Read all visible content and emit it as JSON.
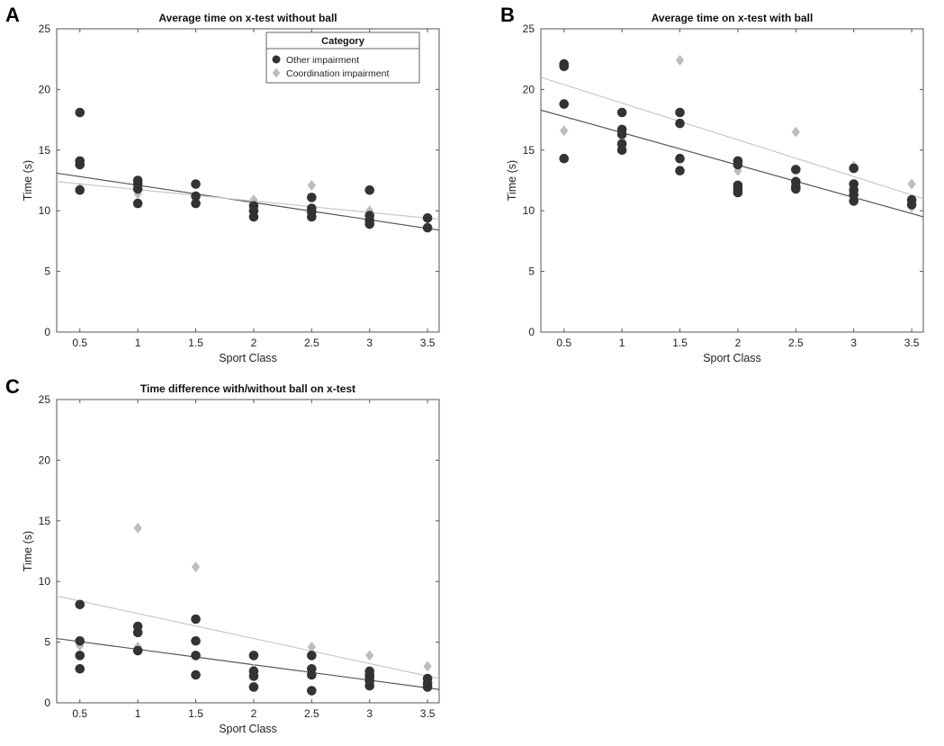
{
  "colors": {
    "other": "#333333",
    "coordination": "#bdbdbd",
    "other_fit": "#555555",
    "coordination_fit": "#c8c8c8"
  },
  "legend": {
    "title": "Category",
    "entries": [
      "Other impairment",
      "Coordination impairment"
    ]
  },
  "chart_data": [
    {
      "type": "scatter",
      "panel": "A",
      "title": "Average time on x-test without ball",
      "xlabel": "Sport Class",
      "ylabel": "Time (s)",
      "xlim": [
        0.3,
        3.6
      ],
      "ylim": [
        0,
        25
      ],
      "xticks": [
        "0.5",
        "1",
        "1.5",
        "2",
        "2.5",
        "3",
        "3.5"
      ],
      "yticks": [
        "0",
        "5",
        "10",
        "15",
        "20",
        "25"
      ],
      "series": [
        {
          "name": "Other impairment",
          "points": [
            [
              0.5,
              18.1
            ],
            [
              0.5,
              14.1
            ],
            [
              0.5,
              13.8
            ],
            [
              0.5,
              11.7
            ],
            [
              1,
              12.5
            ],
            [
              1,
              12.2
            ],
            [
              1,
              11.8
            ],
            [
              1,
              10.6
            ],
            [
              1.5,
              12.2
            ],
            [
              1.5,
              11.2
            ],
            [
              1.5,
              10.6
            ],
            [
              2,
              10.4
            ],
            [
              2,
              10.0
            ],
            [
              2,
              9.5
            ],
            [
              2.5,
              11.1
            ],
            [
              2.5,
              10.2
            ],
            [
              2.5,
              9.9
            ],
            [
              2.5,
              9.5
            ],
            [
              3,
              11.7
            ],
            [
              3,
              9.6
            ],
            [
              3,
              9.2
            ],
            [
              3,
              8.9
            ],
            [
              3.5,
              9.4
            ],
            [
              3.5,
              8.6
            ]
          ]
        },
        {
          "name": "Coordination impairment",
          "points": [
            [
              0.5,
              11.9
            ],
            [
              1,
              11.4
            ],
            [
              1.5,
              11.2
            ],
            [
              2,
              10.9
            ],
            [
              2.5,
              12.1
            ],
            [
              3,
              10.0
            ],
            [
              3.5,
              9.3
            ]
          ]
        }
      ],
      "fits": [
        {
          "name": "Other impairment",
          "from": [
            0.3,
            13.1
          ],
          "to": [
            3.6,
            8.4
          ]
        },
        {
          "name": "Coordination impairment",
          "from": [
            0.3,
            12.4
          ],
          "to": [
            3.6,
            9.3
          ]
        }
      ]
    },
    {
      "type": "scatter",
      "panel": "B",
      "title": "Average time on x-test with ball",
      "xlabel": "Sport Class",
      "ylabel": "Time (s)",
      "xlim": [
        0.3,
        3.6
      ],
      "ylim": [
        0,
        25
      ],
      "xticks": [
        "0.5",
        "1",
        "1.5",
        "2",
        "2.5",
        "3",
        "3.5"
      ],
      "yticks": [
        "0",
        "5",
        "10",
        "15",
        "20",
        "25"
      ],
      "series": [
        {
          "name": "Other impairment",
          "points": [
            [
              0.5,
              22.1
            ],
            [
              0.5,
              21.9
            ],
            [
              0.5,
              18.8
            ],
            [
              0.5,
              14.3
            ],
            [
              1,
              18.1
            ],
            [
              1,
              16.7
            ],
            [
              1,
              16.3
            ],
            [
              1,
              15.5
            ],
            [
              1,
              15.0
            ],
            [
              1.5,
              18.1
            ],
            [
              1.5,
              17.2
            ],
            [
              1.5,
              14.3
            ],
            [
              1.5,
              13.3
            ],
            [
              2,
              14.1
            ],
            [
              2,
              13.8
            ],
            [
              2,
              12.1
            ],
            [
              2,
              11.8
            ],
            [
              2,
              11.5
            ],
            [
              2.5,
              13.4
            ],
            [
              2.5,
              12.4
            ],
            [
              2.5,
              12.0
            ],
            [
              2.5,
              11.8
            ],
            [
              3,
              13.5
            ],
            [
              3,
              12.2
            ],
            [
              3,
              11.7
            ],
            [
              3,
              11.3
            ],
            [
              3,
              10.8
            ],
            [
              3.5,
              10.9
            ],
            [
              3.5,
              10.5
            ]
          ]
        },
        {
          "name": "Coordination impairment",
          "points": [
            [
              0.5,
              16.6
            ],
            [
              1,
              15.8
            ],
            [
              1.5,
              22.4
            ],
            [
              2,
              13.3
            ],
            [
              2.5,
              16.5
            ],
            [
              3,
              13.7
            ],
            [
              3.5,
              12.2
            ],
            [
              3.5,
              10.3
            ]
          ]
        }
      ],
      "fits": [
        {
          "name": "Other impairment",
          "from": [
            0.3,
            18.3
          ],
          "to": [
            3.6,
            9.5
          ]
        },
        {
          "name": "Coordination impairment",
          "from": [
            0.3,
            21.0
          ],
          "to": [
            3.6,
            11.0
          ]
        }
      ]
    },
    {
      "type": "scatter",
      "panel": "C",
      "title": "Time difference with/without ball on x-test",
      "xlabel": "Sport Class",
      "ylabel": "Time (s)",
      "xlim": [
        0.3,
        3.6
      ],
      "ylim": [
        0,
        25
      ],
      "xticks": [
        "0.5",
        "1",
        "1.5",
        "2",
        "2.5",
        "3",
        "3.5"
      ],
      "yticks": [
        "0",
        "5",
        "10",
        "15",
        "20",
        "25"
      ],
      "series": [
        {
          "name": "Other impairment",
          "points": [
            [
              0.5,
              8.1
            ],
            [
              0.5,
              5.1
            ],
            [
              0.5,
              3.9
            ],
            [
              0.5,
              2.8
            ],
            [
              1,
              6.3
            ],
            [
              1,
              5.8
            ],
            [
              1,
              4.3
            ],
            [
              1.5,
              6.9
            ],
            [
              1.5,
              5.1
            ],
            [
              1.5,
              3.9
            ],
            [
              1.5,
              2.3
            ],
            [
              2,
              3.9
            ],
            [
              2,
              2.6
            ],
            [
              2,
              2.2
            ],
            [
              2,
              1.3
            ],
            [
              2.5,
              3.9
            ],
            [
              2.5,
              2.8
            ],
            [
              2.5,
              2.3
            ],
            [
              2.5,
              1.0
            ],
            [
              3,
              2.6
            ],
            [
              3,
              2.3
            ],
            [
              3,
              2.1
            ],
            [
              3,
              1.8
            ],
            [
              3,
              1.4
            ],
            [
              3.5,
              2.0
            ],
            [
              3.5,
              1.6
            ],
            [
              3.5,
              1.3
            ]
          ]
        },
        {
          "name": "Coordination impairment",
          "points": [
            [
              0.5,
              4.7
            ],
            [
              1,
              14.4
            ],
            [
              1,
              4.6
            ],
            [
              1.5,
              11.2
            ],
            [
              2,
              2.8
            ],
            [
              2.5,
              4.6
            ],
            [
              3,
              3.9
            ],
            [
              3.5,
              3.0
            ]
          ]
        }
      ],
      "fits": [
        {
          "name": "Other impairment",
          "from": [
            0.3,
            5.3
          ],
          "to": [
            3.6,
            1.1
          ]
        },
        {
          "name": "Coordination impairment",
          "from": [
            0.3,
            8.8
          ],
          "to": [
            3.6,
            2.0
          ]
        }
      ]
    }
  ]
}
